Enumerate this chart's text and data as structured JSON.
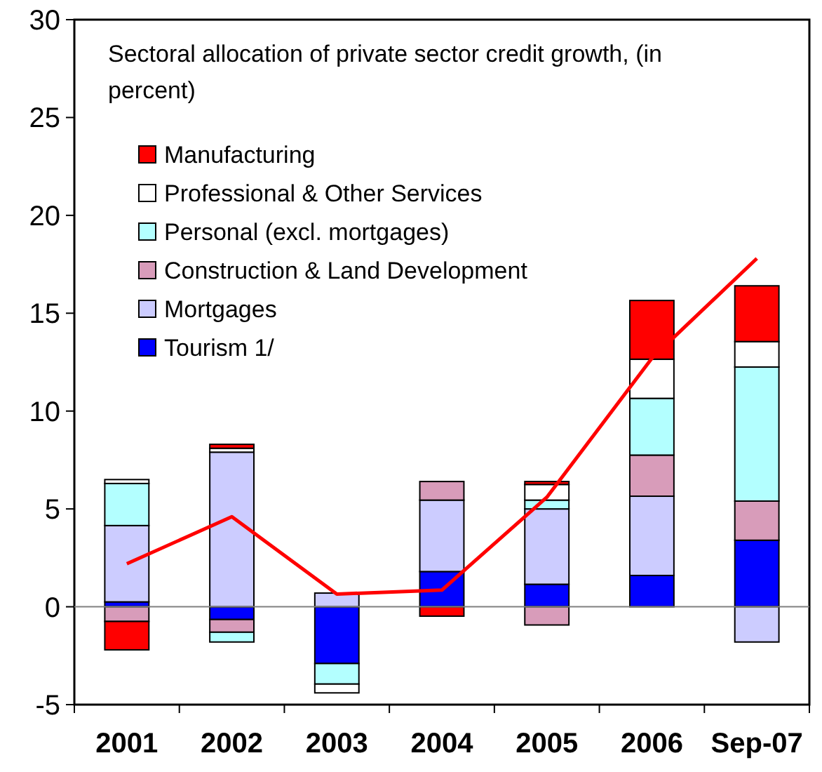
{
  "chart_data": {
    "type": "bar",
    "stacked": true,
    "title": "Sectoral allocation of private sector credit growth, (in percent)",
    "categories": [
      "2001",
      "2002",
      "2003",
      "2004",
      "2005",
      "2006",
      "Sep-07"
    ],
    "series": [
      {
        "name": "Tourism 1/",
        "color": "#0000ff",
        "values": [
          0.25,
          -0.65,
          -2.9,
          1.8,
          1.15,
          1.6,
          3.4
        ]
      },
      {
        "name": "Mortgages",
        "color": "#ccccff",
        "values": [
          3.9,
          7.9,
          0.7,
          3.65,
          3.85,
          4.05,
          -1.8
        ]
      },
      {
        "name": "Construction & Land Development",
        "color": "#d89cba",
        "values": [
          -0.75,
          -0.65,
          null,
          0.95,
          -0.93,
          2.1,
          2.0
        ]
      },
      {
        "name": "Personal (excl. mortgages)",
        "color": "#b3ffff",
        "values": [
          2.15,
          -0.5,
          -1.05,
          null,
          0.45,
          2.9,
          6.85
        ]
      },
      {
        "name": "Professional & Other Services",
        "color": "#ffffff",
        "values": [
          0.2,
          0.2,
          -0.45,
          null,
          0.8,
          2.0,
          1.3
        ]
      },
      {
        "name": "Manufacturing",
        "color": "#ff0000",
        "values": [
          -1.45,
          0.2,
          null,
          -0.48,
          0.15,
          3.0,
          2.85
        ]
      },
      {
        "type": "line",
        "color": "#ff0000",
        "values": [
          2.2,
          4.6,
          0.65,
          0.85,
          5.6,
          12.7,
          17.8
        ]
      }
    ],
    "ylim": [
      -5,
      30
    ],
    "yticks": [
      -5,
      0,
      5,
      10,
      15,
      20,
      25,
      30
    ],
    "legend": "top left",
    "line_style": "solid",
    "ref_lines": [
      {
        "axis": "y",
        "value": 0,
        "color": "#808080"
      }
    ]
  }
}
